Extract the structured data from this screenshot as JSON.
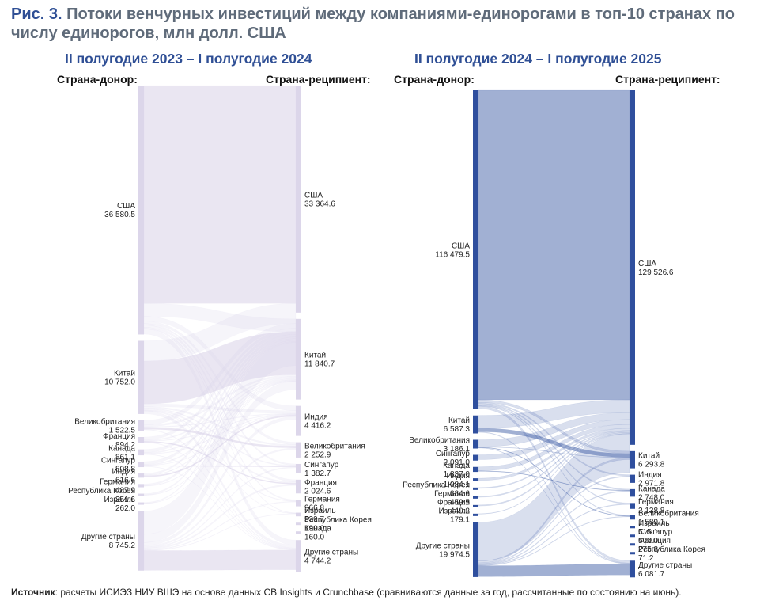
{
  "figure": {
    "label": "Рис. 3.",
    "title": "Потоки венчурных инвестиций между компаниями-единорогами в топ-10 странах по числу единорогов, млн долл. США"
  },
  "source": {
    "label": "Источник",
    "text": ": расчеты ИСИЭЗ НИУ ВШЭ на основе данных CB Insights и Crunchbase (сравниваются данные за год, рассчитанные по состоянию на июнь)."
  },
  "colors": {
    "left_panel": "#d8d2e8",
    "right_panel": "#2f4f9e",
    "title_blue": "#2f4f95"
  },
  "chart_data": [
    {
      "type": "sankey",
      "title": "II полугодие 2023 – I полугодие 2024",
      "source_header": "Страна-донор:",
      "target_header": "Страна-реципиент:",
      "sources": [
        {
          "name": "США",
          "value": "36 580.5"
        },
        {
          "name": "Китай",
          "value": "10 752.0"
        },
        {
          "name": "Великобритания",
          "value": "1 522.5"
        },
        {
          "name": "Франция",
          "value": "894.2"
        },
        {
          "name": "Канада",
          "value": "861.1"
        },
        {
          "name": "Сингапур",
          "value": "808.8"
        },
        {
          "name": "Индия",
          "value": "616.6"
        },
        {
          "name": "Германия",
          "value": "487.9"
        },
        {
          "name": "Республика Корея",
          "value": "351.6"
        },
        {
          "name": "Израиль",
          "value": "262.0"
        },
        {
          "name": "Другие страны",
          "value": "8 745.2"
        }
      ],
      "targets": [
        {
          "name": "США",
          "value": "33 364.6"
        },
        {
          "name": "Китай",
          "value": "11 840.7"
        },
        {
          "name": "Индия",
          "value": "4 416.2"
        },
        {
          "name": "Великобритания",
          "value": "2 252.9"
        },
        {
          "name": "Сингапур",
          "value": "1 382.7"
        },
        {
          "name": "Франция",
          "value": "2 024.6"
        },
        {
          "name": "Германия",
          "value": "966.8"
        },
        {
          "name": "Израиль",
          "value": "539.7"
        },
        {
          "name": "Республика Корея",
          "value": "190.0"
        },
        {
          "name": "Канада",
          "value": "160.0"
        },
        {
          "name": "Другие страны",
          "value": "4 744.2"
        }
      ]
    },
    {
      "type": "sankey",
      "title": "II полугодие 2024 – I полугодие 2025",
      "source_header": "Страна-донор:",
      "target_header": "Страна-реципиент:",
      "sources": [
        {
          "name": "США",
          "value": "116 479.5"
        },
        {
          "name": "Китай",
          "value": "6 587.3"
        },
        {
          "name": "Великобритания",
          "value": "3 186.1"
        },
        {
          "name": "Сингапур",
          "value": "2 091.0"
        },
        {
          "name": "Канада",
          "value": "1 837.0"
        },
        {
          "name": "Индия",
          "value": "1 084.1"
        },
        {
          "name": "Республика Корея",
          "value": "384.6"
        },
        {
          "name": "Германия",
          "value": "459.5"
        },
        {
          "name": "Франция",
          "value": "449.2"
        },
        {
          "name": "Израиль",
          "value": "179.1"
        },
        {
          "name": "Другие страны",
          "value": "19 974.5"
        }
      ],
      "targets": [
        {
          "name": "США",
          "value": "129 526.6"
        },
        {
          "name": "Китай",
          "value": "6 293.8"
        },
        {
          "name": "Индия",
          "value": "2 971.8"
        },
        {
          "name": "Канада",
          "value": "2 748.0"
        },
        {
          "name": "Германия",
          "value": "2 138.8"
        },
        {
          "name": "Великобритания",
          "value": "1 589.1"
        },
        {
          "name": "Израиль",
          "value": "515.1"
        },
        {
          "name": "Сингапур",
          "value": "500.0"
        },
        {
          "name": "Франция",
          "value": "275.8"
        },
        {
          "name": "Республика Корея",
          "value": "71.2"
        },
        {
          "name": "Другие страны",
          "value": "6 081.7"
        }
      ]
    }
  ]
}
